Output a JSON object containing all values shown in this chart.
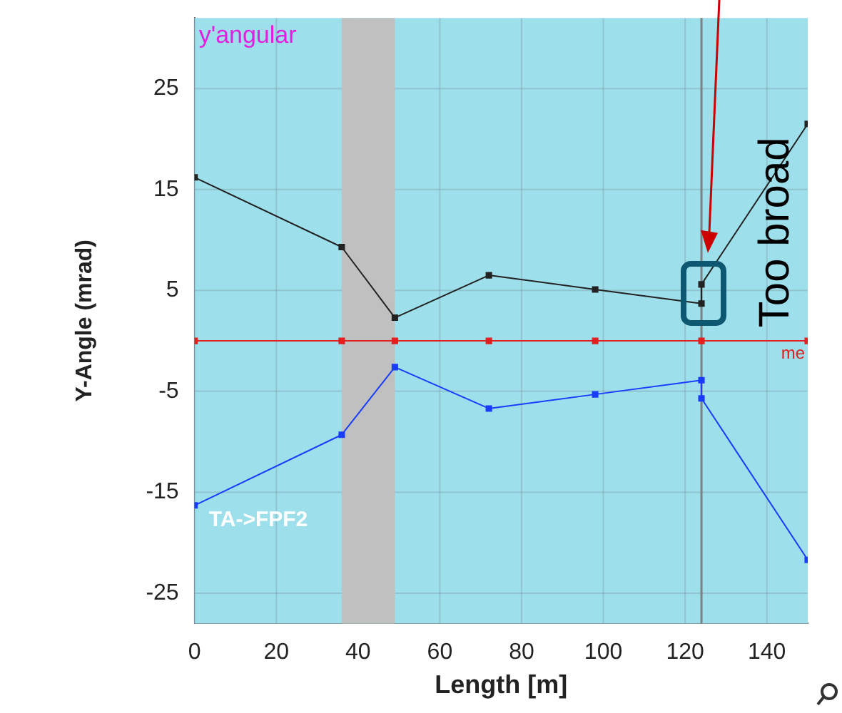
{
  "chart_data": {
    "type": "line",
    "xlabel": "Length [m]",
    "ylabel": "Y-Angle (mrad)",
    "xlim": [
      0,
      150
    ],
    "xticks": [
      0,
      20,
      40,
      60,
      80,
      100,
      120,
      140
    ],
    "ylim": [
      -28,
      32
    ],
    "yticks": [
      -25,
      -15,
      -5,
      5,
      15,
      25
    ],
    "grid": true,
    "legend": false,
    "marker": "square",
    "line_style": "solid",
    "series": [
      {
        "color": "#222222",
        "x": [
          0,
          36,
          49,
          72,
          98,
          124,
          124,
          150
        ],
        "values": [
          16.2,
          9.3,
          2.3,
          6.5,
          5.1,
          3.7,
          5.6,
          21.5
        ]
      },
      {
        "name": "TA->FPF2",
        "color": "#1a3cff",
        "x": [
          0,
          36,
          49,
          72,
          98,
          124,
          124,
          150
        ],
        "values": [
          -16.3,
          -9.3,
          -2.6,
          -6.7,
          -5.3,
          -3.9,
          -5.7,
          -21.7
        ]
      },
      {
        "name": "me",
        "color": "#e02020",
        "x": [
          0,
          36,
          49,
          72,
          98,
          124,
          150
        ],
        "values": [
          0,
          0,
          0,
          0,
          0,
          0,
          0
        ]
      }
    ],
    "bands": [
      {
        "axis": "x",
        "from": 36,
        "to": 49,
        "color": "#c0c0c0"
      }
    ],
    "ref_lines": [
      {
        "axis": "x",
        "value": 124,
        "color": "#808080"
      }
    ],
    "annotations": [
      "y'angular",
      "Too broad"
    ]
  }
}
